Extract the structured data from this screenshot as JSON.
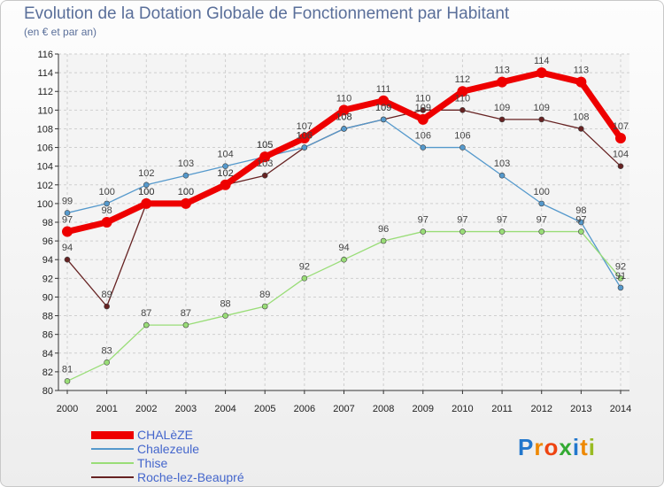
{
  "chart_data": {
    "type": "line",
    "title": "Evolution de la Dotation Globale de Fonctionnement par Habitant",
    "subtitle": "(en € et par an)",
    "xlabel": "",
    "ylabel": "",
    "categories": [
      "2000",
      "2001",
      "2002",
      "2003",
      "2004",
      "2005",
      "2006",
      "2007",
      "2008",
      "2009",
      "2010",
      "2011",
      "2012",
      "2013",
      "2014"
    ],
    "ylim": [
      80,
      116
    ],
    "yticks": [
      80,
      82,
      84,
      86,
      88,
      90,
      92,
      94,
      96,
      98,
      100,
      102,
      104,
      106,
      108,
      110,
      112,
      114,
      116
    ],
    "grid": true,
    "legend_position": "bottom-left",
    "series": [
      {
        "name": "CHALèZE",
        "color": "#ee0000",
        "values": [
          97,
          98,
          100,
          100,
          102,
          105,
          107,
          110,
          111,
          109,
          112,
          113,
          114,
          113,
          107
        ]
      },
      {
        "name": "Chalezeule",
        "color": "#5599cc",
        "values": [
          99,
          100,
          102,
          103,
          104,
          105,
          106,
          108,
          109,
          106,
          106,
          103,
          100,
          98,
          91
        ]
      },
      {
        "name": "Thise",
        "color": "#99dd77",
        "values": [
          81,
          83,
          87,
          87,
          88,
          89,
          92,
          94,
          96,
          97,
          97,
          97,
          97,
          97,
          92
        ]
      },
      {
        "name": "Roche-lez-Beaupré",
        "color": "#662222",
        "values": [
          94,
          89,
          100,
          100,
          102,
          103,
          106,
          108,
          109,
          110,
          110,
          109,
          109,
          108,
          104
        ]
      }
    ]
  },
  "brand": {
    "text": "Proxiti",
    "letters": [
      "P",
      "r",
      "o",
      "x",
      "i",
      "t",
      "i"
    ],
    "colors": [
      "#2277cc",
      "#ee8800",
      "#ee4411",
      "#33aa33",
      "#2277cc",
      "#ee8800",
      "#99bb22"
    ]
  }
}
